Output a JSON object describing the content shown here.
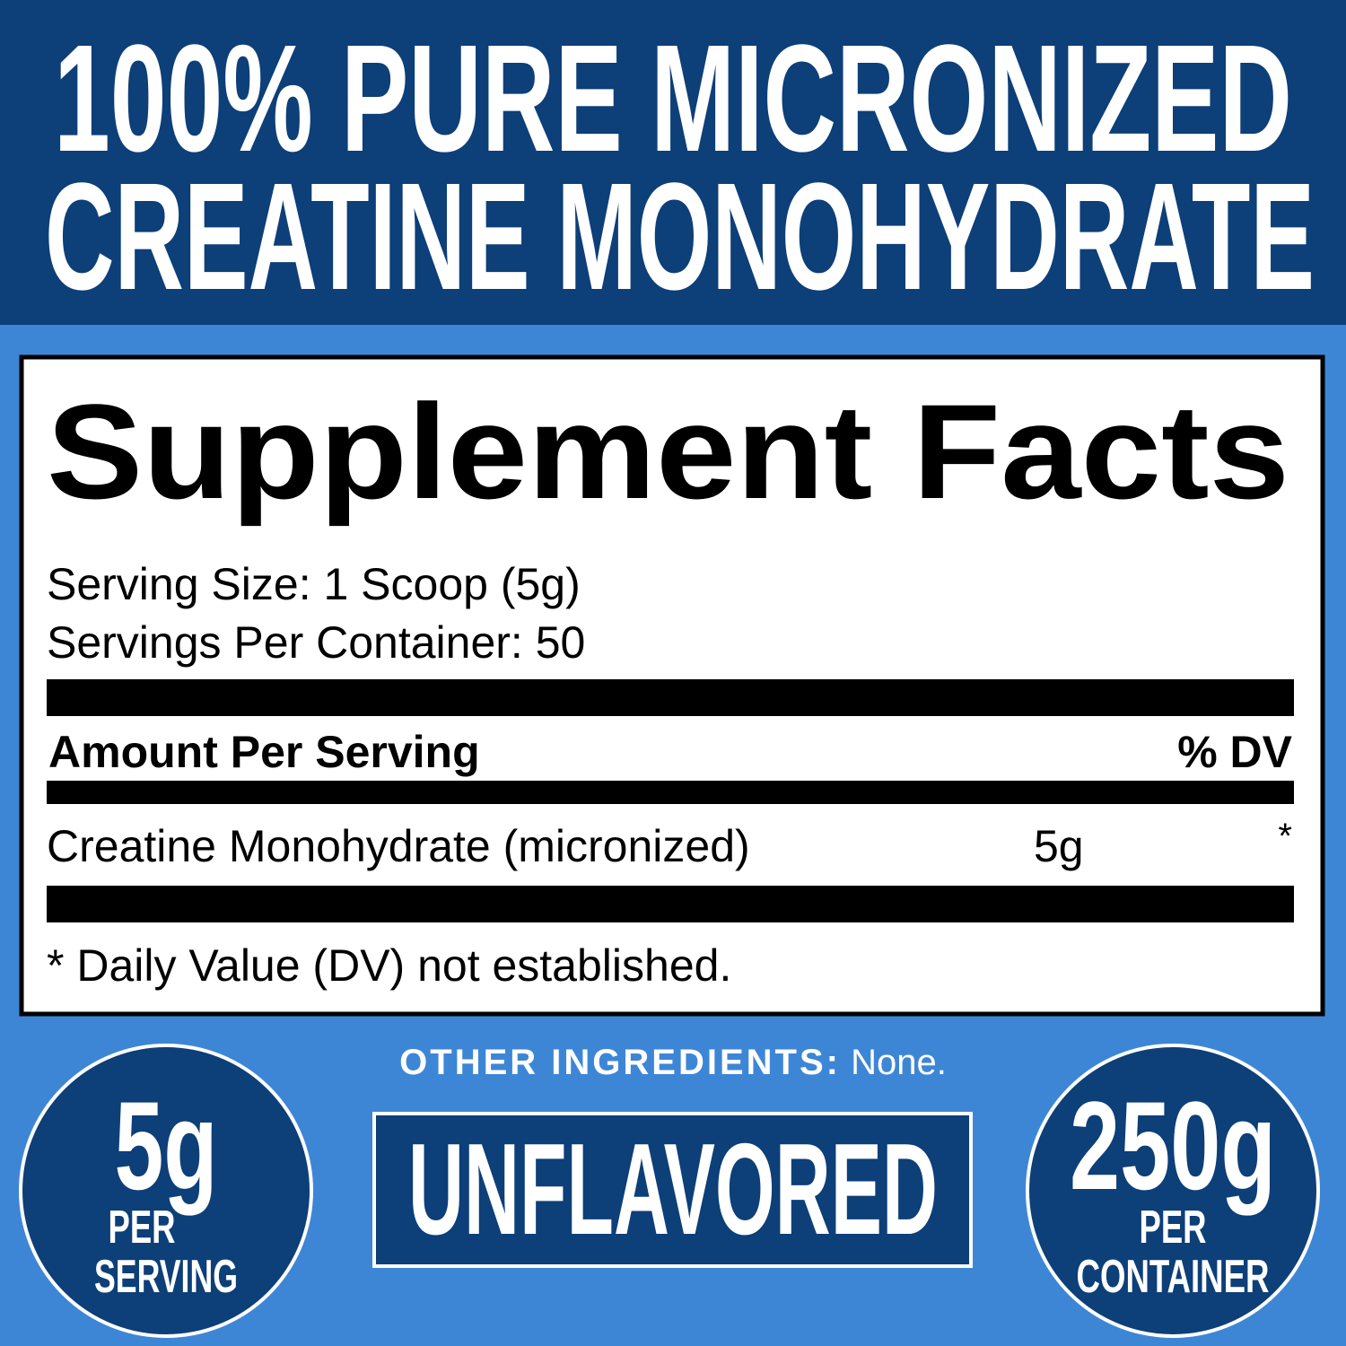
{
  "header": {
    "lines": [
      "100% PURE MICRONIZED",
      "CREATINE MONOHYDRATE"
    ]
  },
  "facts": {
    "title": "Supplement Facts",
    "serving_size": "Serving Size: 1 Scoop (5g)",
    "servings_per_container": "Servings Per Container: 50",
    "amount_header": "Amount Per Serving",
    "dv_header": "% DV",
    "rows": [
      [
        "Creatine Monohydrate (micronized)",
        "5g",
        "*"
      ]
    ],
    "footnote": "* Daily Value (DV) not established."
  },
  "other_ingredients": {
    "label": "OTHER INGREDIENTS:",
    "value": "None."
  },
  "badges": {
    "left": {
      "amount": "5g",
      "line1": "PER",
      "line2": "SERVING"
    },
    "center": "UNFLAVORED",
    "right": {
      "amount": "250g",
      "line1": "PER",
      "line2": "CONTAINER"
    }
  }
}
